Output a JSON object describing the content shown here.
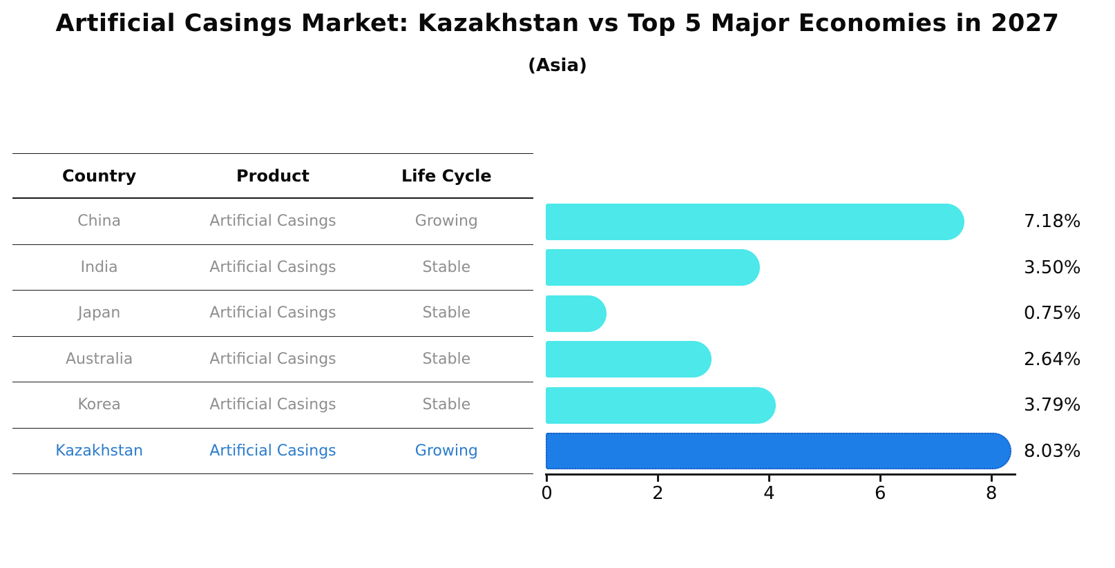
{
  "title": "Artificial Casings Market: Kazakhstan vs Top 5 Major Economies in 2027",
  "subtitle": "(Asia)",
  "colors": {
    "bar_default": "#4DE8EA",
    "bar_highlight": "#1E7EE8",
    "bar_highlight_border": "#1A5FC0",
    "highlight_text": "#2B7CCC",
    "table_text": "#8E8E8E",
    "heading_text": "#0A0A0A",
    "line": "#1A1A1A"
  },
  "table": {
    "headers": [
      "Country",
      "Product",
      "Life Cycle"
    ],
    "rows": [
      {
        "country": "China",
        "product": "Artificial Casings",
        "life_cycle": "Growing",
        "highlight": false
      },
      {
        "country": "India",
        "product": "Artificial Casings",
        "life_cycle": "Stable",
        "highlight": false
      },
      {
        "country": "Japan",
        "product": "Artificial Casings",
        "life_cycle": "Stable",
        "highlight": false
      },
      {
        "country": "Australia",
        "product": "Artificial Casings",
        "life_cycle": "Stable",
        "highlight": false
      },
      {
        "country": "Korea",
        "product": "Artificial Casings",
        "life_cycle": "Stable",
        "highlight": false
      },
      {
        "country": "Kazakhstan",
        "product": "Artificial Casings",
        "life_cycle": "Growing",
        "highlight": true
      }
    ]
  },
  "chart_data": {
    "type": "bar",
    "orientation": "horizontal",
    "title": "Artificial Casings Market: Kazakhstan vs Top 5 Major Economies in 2027 (Asia)",
    "categories": [
      "China",
      "India",
      "Japan",
      "Australia",
      "Korea",
      "Kazakhstan"
    ],
    "values": [
      7.18,
      3.5,
      0.75,
      2.64,
      3.79,
      8.03
    ],
    "value_labels": [
      "7.18%",
      "3.50%",
      "0.75%",
      "2.64%",
      "3.79%",
      "8.03%"
    ],
    "unit": "percent growth",
    "highlight_index": 5,
    "xticks": [
      0,
      2,
      4,
      6,
      8
    ],
    "xlim": [
      0,
      8.55
    ],
    "grid": false,
    "legend": false
  }
}
